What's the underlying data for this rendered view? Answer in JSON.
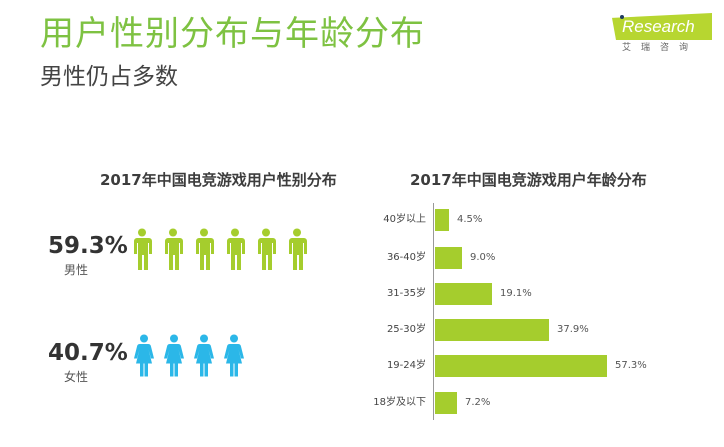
{
  "header": {
    "title": "用户性别分布与年龄分布",
    "subtitle": "男性仍占多数"
  },
  "logo": {
    "brand": "iResearch",
    "brand_text": "Research",
    "cn": "艾瑞咨询"
  },
  "colors": {
    "accent_green": "#7ec242",
    "bar_green": "#a5cd2d",
    "male_icon": "#a5cd2d",
    "female_icon": "#2bb7e8"
  },
  "gender": {
    "title": "2017年中国电竞游戏用户性别分布",
    "male": {
      "pct": "59.3%",
      "label": "男性",
      "icons": 6
    },
    "female": {
      "pct": "40.7%",
      "label": "女性",
      "icons": 4
    }
  },
  "age": {
    "title": "2017年中国电竞游戏用户年龄分布",
    "rows": [
      {
        "label": "40岁以上",
        "value": 4.5,
        "display": "4.5%"
      },
      {
        "label": "36-40岁",
        "value": 9.0,
        "display": "9.0%"
      },
      {
        "label": "31-35岁",
        "value": 19.1,
        "display": "19.1%"
      },
      {
        "label": "25-30岁",
        "value": 37.9,
        "display": "37.9%"
      },
      {
        "label": "19-24岁",
        "value": 57.3,
        "display": "57.3%"
      },
      {
        "label": "18岁及以下",
        "value": 7.2,
        "display": "7.2%"
      }
    ]
  },
  "chart_data": [
    {
      "type": "pie",
      "title": "2017年中国电竞游戏用户性别分布",
      "categories": [
        "男性",
        "女性"
      ],
      "values": [
        59.3,
        40.7
      ],
      "unit": "%",
      "render": "pictogram"
    },
    {
      "type": "bar",
      "orientation": "horizontal",
      "title": "2017年中国电竞游戏用户年龄分布",
      "categories": [
        "40岁以上",
        "36-40岁",
        "31-35岁",
        "25-30岁",
        "19-24岁",
        "18岁及以下"
      ],
      "values": [
        4.5,
        9.0,
        19.1,
        37.9,
        57.3,
        7.2
      ],
      "unit": "%",
      "xlabel": "",
      "ylabel": "",
      "grid": false,
      "data_labels": true
    }
  ]
}
